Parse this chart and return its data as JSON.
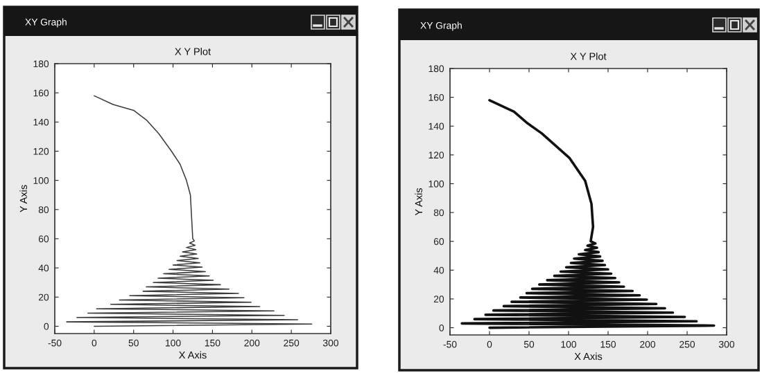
{
  "chart_data": [
    {
      "type": "line",
      "title": "X Y Plot",
      "xlabel": "X Axis",
      "ylabel": "Y Axis",
      "annotations": [
        "XY Graph"
      ],
      "xlim": [
        -50,
        300
      ],
      "ylim": [
        -5,
        180
      ],
      "xticks": [
        -50,
        0,
        50,
        100,
        150,
        200,
        250,
        300
      ],
      "yticks": [
        0,
        20,
        40,
        60,
        80,
        100,
        120,
        140,
        160,
        180
      ],
      "series": [
        {
          "color": "#3a3a3a",
          "x": [
            0,
            276,
            -35,
            258,
            -22,
            241,
            -8,
            228,
            3,
            210,
            21,
            199,
            32,
            190,
            45,
            183,
            62,
            171,
            66,
            160,
            75,
            151,
            81,
            146,
            88,
            141,
            95,
            137,
            100,
            134,
            105,
            132,
            109,
            130,
            112,
            129,
            117,
            128,
            121,
            127,
            125,
            124,
            123,
            122,
            117,
            109,
            98,
            82,
            67,
            50,
            24,
            0
          ],
          "values": [
            0,
            1.5,
            3,
            4.5,
            6,
            7.5,
            9,
            10.5,
            12,
            13.5,
            15,
            16.5,
            18,
            19.5,
            21,
            22.5,
            24,
            25.5,
            27,
            28.5,
            30,
            31.5,
            33,
            34.5,
            36,
            37.5,
            39,
            40.5,
            42,
            43.5,
            45,
            46.5,
            48,
            49.5,
            51,
            52.5,
            54,
            55.5,
            57,
            58.5,
            60,
            70,
            80,
            90,
            100,
            111,
            120,
            132,
            141,
            148,
            152,
            158
          ]
        }
      ]
    },
    {
      "type": "line",
      "title": "X Y Plot",
      "xlabel": "X Axis",
      "ylabel": "Y Axis",
      "annotations": [
        "XY Graph"
      ],
      "xlim": [
        -50,
        300
      ],
      "ylim": [
        -5,
        180
      ],
      "xticks": [
        -50,
        0,
        50,
        100,
        150,
        200,
        250,
        300
      ],
      "yticks": [
        0,
        20,
        40,
        60,
        80,
        100,
        120,
        140,
        160,
        180
      ],
      "series": [
        {
          "color": "#111111",
          "x": [
            0,
            284,
            -35,
            262,
            -19,
            247,
            -5,
            232,
            5,
            222,
            18,
            211,
            28,
            199,
            39,
            190,
            47,
            181,
            54,
            170,
            63,
            164,
            73,
            159,
            82,
            154,
            90,
            150,
            97,
            146,
            103,
            143,
            107,
            140,
            113,
            138,
            121,
            136,
            124,
            134,
            128,
            131,
            129,
            121,
            101,
            66,
            48,
            31,
            0
          ],
          "values": [
            0,
            1.5,
            3,
            4.5,
            6,
            7.5,
            9,
            10.5,
            12,
            13.5,
            15,
            16.5,
            18,
            19.5,
            21,
            22.5,
            24,
            25.5,
            27,
            28.5,
            30,
            31.5,
            33,
            34.5,
            36,
            37.5,
            39,
            40.5,
            42,
            43.5,
            45,
            46.5,
            48,
            49.5,
            51,
            52.5,
            54,
            55.5,
            57,
            58.5,
            60,
            70,
            86,
            102,
            118,
            135,
            142,
            150,
            158
          ]
        }
      ]
    }
  ]
}
